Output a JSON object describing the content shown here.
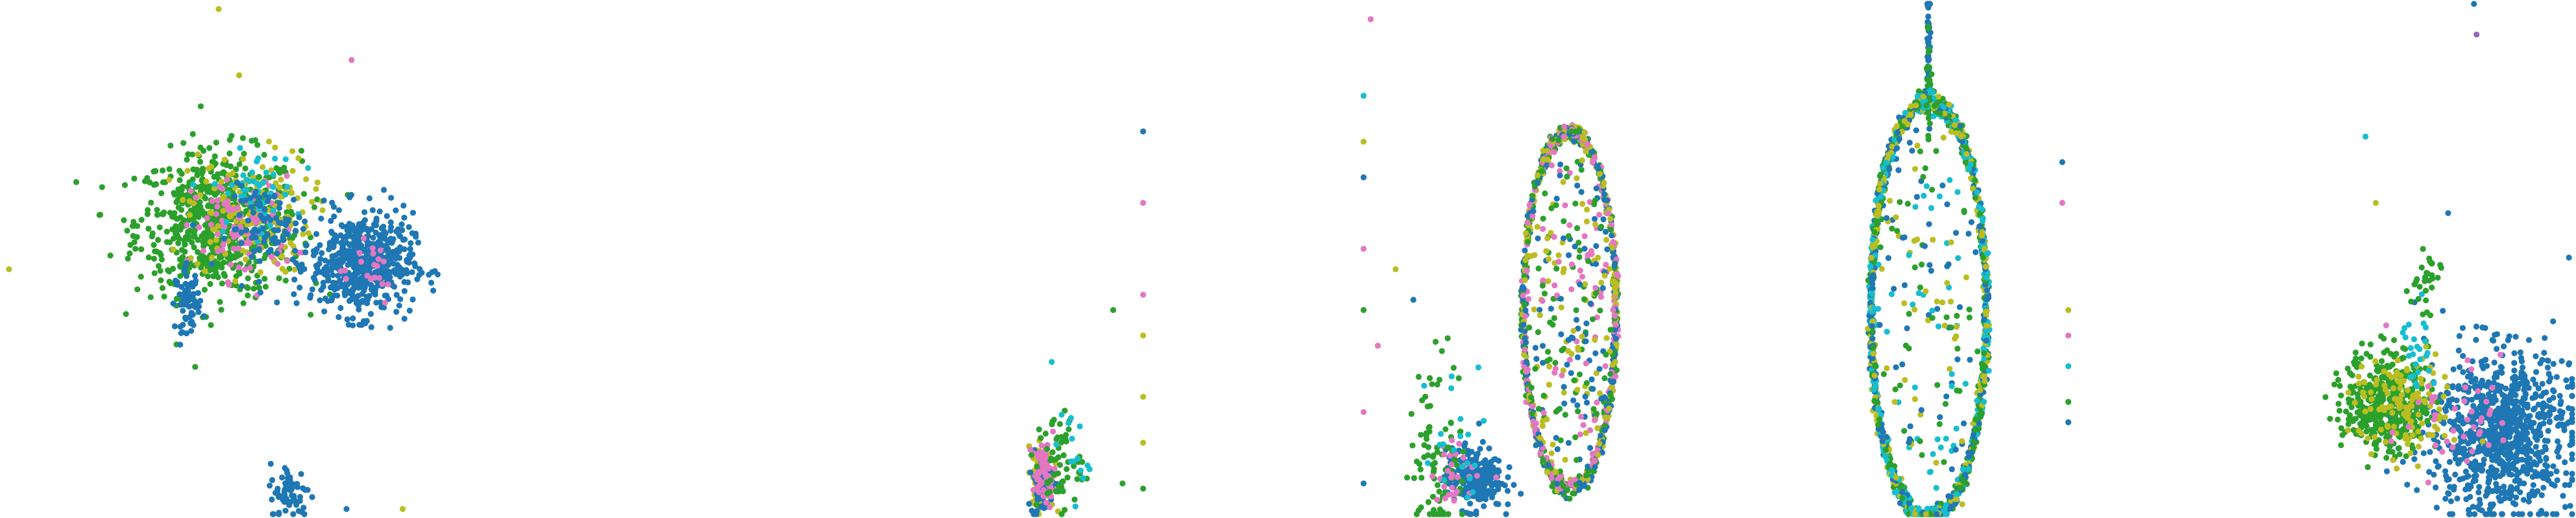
{
  "colors": {
    "blue": "#1f77b4",
    "green": "#2ca02c",
    "olive": "#bcbd22",
    "pink": "#e377c2",
    "cyan": "#17becf",
    "purple": "#9467bd"
  },
  "chart_data": [
    {
      "type": "scatter",
      "title": "",
      "xlabel": "",
      "ylabel": "",
      "axes": "hidden",
      "grid": false,
      "legend": "none",
      "xlim": [
        0,
        100
      ],
      "ylim": [
        0,
        100
      ],
      "clusters": [
        {
          "color": "green",
          "center": [
            42,
            57
          ],
          "spread": [
            8,
            7
          ],
          "count": 700
        },
        {
          "color": "olive",
          "center": [
            48,
            59
          ],
          "spread": [
            6,
            6
          ],
          "count": 160
        },
        {
          "color": "pink",
          "center": [
            47,
            56
          ],
          "spread": [
            5,
            5
          ],
          "count": 90
        },
        {
          "color": "cyan",
          "center": [
            49,
            63
          ],
          "spread": [
            4,
            4
          ],
          "count": 50
        },
        {
          "color": "blue",
          "center": [
            52,
            56
          ],
          "spread": [
            4,
            4
          ],
          "count": 80
        },
        {
          "color": "blue",
          "center": [
            36,
            42
          ],
          "spread": [
            1.2,
            3
          ],
          "count": 70
        },
        {
          "color": "blue",
          "center": [
            70,
            49
          ],
          "spread": [
            5,
            5
          ],
          "count": 550
        },
        {
          "color": "pink",
          "center": [
            70,
            49
          ],
          "spread": [
            4,
            4
          ],
          "count": 20
        },
        {
          "color": "blue",
          "center": [
            56,
            4
          ],
          "spread": [
            2,
            3
          ],
          "count": 60
        }
      ],
      "points": [
        {
          "x": 42,
          "y": 99,
          "color": "olive"
        },
        {
          "x": 46,
          "y": 86,
          "color": "olive"
        },
        {
          "x": 68,
          "y": 89,
          "color": "pink"
        },
        {
          "x": 1,
          "y": 48,
          "color": "olive"
        },
        {
          "x": 67,
          "y": 1,
          "color": "blue"
        },
        {
          "x": 78,
          "y": 1,
          "color": "olive"
        }
      ]
    },
    {
      "type": "scatter",
      "title": "",
      "xlabel": "",
      "ylabel": "",
      "axes": "hidden",
      "grid": false,
      "legend": "none",
      "xlim": [
        0,
        100
      ],
      "ylim": [
        0,
        100
      ],
      "clusters": [
        {
          "color": "olive",
          "center": [
            7,
            7
          ],
          "spread": [
            3,
            3
          ],
          "count": 120
        },
        {
          "color": "blue",
          "center": [
            7,
            6
          ],
          "spread": [
            3,
            3
          ],
          "count": 80
        },
        {
          "color": "pink",
          "center": [
            8,
            8
          ],
          "spread": [
            3,
            3
          ],
          "count": 60
        },
        {
          "color": "green",
          "center": [
            16,
            10
          ],
          "spread": [
            6,
            5
          ],
          "count": 60
        },
        {
          "color": "cyan",
          "center": [
            22,
            12
          ],
          "spread": [
            5,
            5
          ],
          "count": 15
        }
      ],
      "points": [
        {
          "x": 61,
          "y": 75,
          "color": "blue"
        },
        {
          "x": 61,
          "y": 61,
          "color": "pink"
        },
        {
          "x": 61,
          "y": 43,
          "color": "pink"
        },
        {
          "x": 61,
          "y": 35,
          "color": "olive"
        },
        {
          "x": 61,
          "y": 23,
          "color": "olive"
        },
        {
          "x": 61,
          "y": 14,
          "color": "olive"
        },
        {
          "x": 61,
          "y": 5,
          "color": "green"
        },
        {
          "x": 45,
          "y": 40,
          "color": "green"
        },
        {
          "x": 50,
          "y": 6,
          "color": "green"
        }
      ]
    },
    {
      "type": "scatter",
      "title": "",
      "xlabel": "",
      "ylabel": "",
      "axes": "hidden",
      "grid": false,
      "legend": "none",
      "xlim": [
        0,
        100
      ],
      "ylim": [
        0,
        100
      ],
      "clusters": [
        {
          "color": "blue",
          "center": [
            32,
            7
          ],
          "spread": [
            4,
            3
          ],
          "count": 260
        },
        {
          "color": "green",
          "center": [
            22,
            12
          ],
          "spread": [
            4,
            10
          ],
          "count": 90
        },
        {
          "color": "pink",
          "center": [
            28,
            8
          ],
          "spread": [
            4,
            3
          ],
          "count": 30
        },
        {
          "color": "cyan",
          "center": [
            28,
            14
          ],
          "spread": [
            5,
            8
          ],
          "count": 20
        }
      ],
      "rings": [
        {
          "center": [
            59,
            40
          ],
          "radius": [
            13,
            35
          ],
          "colors": [
            "green",
            "olive",
            "pink",
            "blue"
          ],
          "count": 900,
          "fill": 260
        }
      ],
      "points": [
        {
          "x": 1,
          "y": 82,
          "color": "cyan"
        },
        {
          "x": 1,
          "y": 73,
          "color": "olive"
        },
        {
          "x": 1,
          "y": 66,
          "color": "blue"
        },
        {
          "x": 1,
          "y": 52,
          "color": "pink"
        },
        {
          "x": 1,
          "y": 40,
          "color": "green"
        },
        {
          "x": 1,
          "y": 20,
          "color": "pink"
        },
        {
          "x": 1,
          "y": 6,
          "color": "blue"
        },
        {
          "x": 10,
          "y": 48,
          "color": "olive"
        },
        {
          "x": 3,
          "y": 97,
          "color": "pink"
        },
        {
          "x": 5,
          "y": 33,
          "color": "pink"
        },
        {
          "x": 15,
          "y": 42,
          "color": "blue"
        }
      ]
    },
    {
      "type": "scatter",
      "title": "",
      "xlabel": "",
      "ylabel": "",
      "axes": "hidden",
      "grid": false,
      "legend": "none",
      "xlim": [
        0,
        100
      ],
      "ylim": [
        0,
        100
      ],
      "clusters": [
        {
          "color": "blue",
          "center": [
            27,
            94
          ],
          "spread": [
            0.3,
            8
          ],
          "count": 60
        },
        {
          "color": "green",
          "center": [
            27,
            84
          ],
          "spread": [
            0.4,
            6
          ],
          "count": 25
        }
      ],
      "rings": [
        {
          "center": [
            27,
            40
          ],
          "radius": [
            19,
            41
          ],
          "colors": [
            "blue",
            "green",
            "olive",
            "cyan"
          ],
          "count": 1400,
          "fill": 160
        }
      ],
      "points": [
        {
          "x": 71,
          "y": 69,
          "color": "blue"
        },
        {
          "x": 71,
          "y": 61,
          "color": "pink"
        },
        {
          "x": 73,
          "y": 40,
          "color": "olive"
        },
        {
          "x": 73,
          "y": 35,
          "color": "pink"
        },
        {
          "x": 73,
          "y": 29,
          "color": "cyan"
        },
        {
          "x": 73,
          "y": 22,
          "color": "green"
        },
        {
          "x": 73,
          "y": 18,
          "color": "blue"
        }
      ]
    },
    {
      "type": "scatter",
      "title": "",
      "xlabel": "",
      "ylabel": "",
      "axes": "hidden",
      "grid": false,
      "legend": "none",
      "xlim": [
        0,
        100
      ],
      "ylim": [
        0,
        100
      ],
      "clusters": [
        {
          "color": "blue",
          "center": [
            72,
            16
          ],
          "spread": [
            14,
            8
          ],
          "count": 900
        },
        {
          "color": "green",
          "center": [
            28,
            22
          ],
          "spread": [
            8,
            5
          ],
          "count": 400
        },
        {
          "color": "olive",
          "center": [
            35,
            21
          ],
          "spread": [
            10,
            5
          ],
          "count": 120
        },
        {
          "color": "pink",
          "center": [
            55,
            18
          ],
          "spread": [
            12,
            6
          ],
          "count": 40
        },
        {
          "color": "cyan",
          "center": [
            40,
            31
          ],
          "spread": [
            3,
            5
          ],
          "count": 25
        },
        {
          "color": "green",
          "center": [
            43,
            44
          ],
          "spread": [
            3,
            4
          ],
          "count": 30
        }
      ],
      "points": [
        {
          "x": 62,
          "y": 100,
          "color": "blue"
        },
        {
          "x": 63,
          "y": 94,
          "color": "purple"
        },
        {
          "x": 20,
          "y": 74,
          "color": "cyan"
        },
        {
          "x": 24,
          "y": 61,
          "color": "olive"
        },
        {
          "x": 52,
          "y": 59,
          "color": "blue"
        },
        {
          "x": 28,
          "y": 37,
          "color": "pink"
        },
        {
          "x": 96,
          "y": 30,
          "color": "blue"
        }
      ]
    }
  ]
}
